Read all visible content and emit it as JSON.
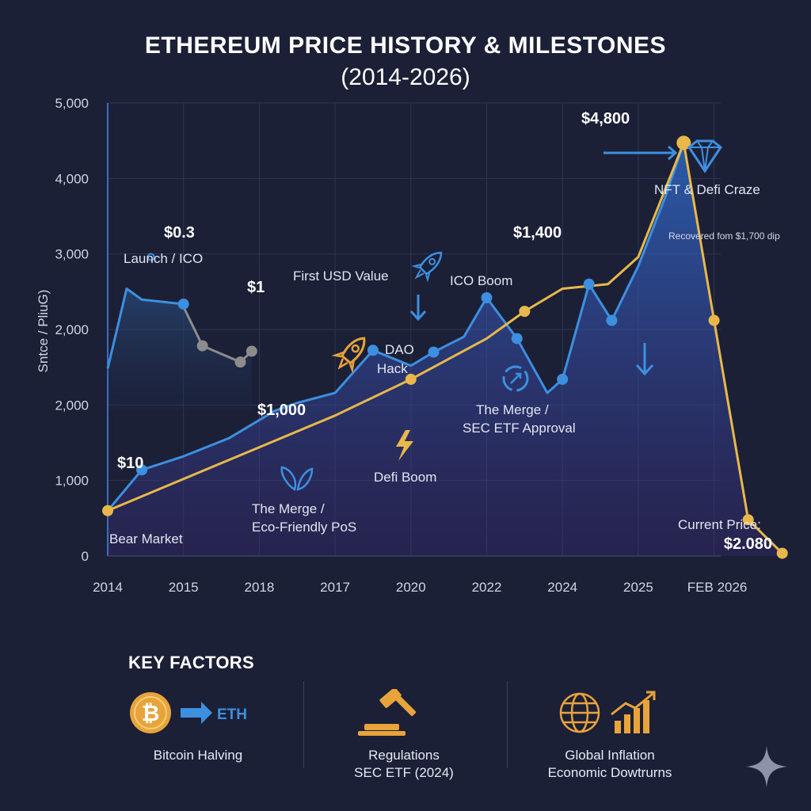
{
  "title_line1": "ETHEREUM PRICE HISTORY & MILESTONES",
  "title_line2": "(2014-2026)",
  "chart_data": {
    "type": "line",
    "title": "ETHEREUM PRICE HISTORY & MILESTONES (2014-2026)",
    "ylabel": "Sntce / PliuG)",
    "xlabel": "",
    "ylim": [
      0,
      5000
    ],
    "grid": true,
    "x_tick_labels": [
      "2014",
      "2015",
      "2018",
      "2017",
      "2020",
      "2022",
      "2024",
      "2025",
      "FEB 2026"
    ],
    "y_tick_labels": [
      "0",
      "1,000",
      "2,000",
      "2,000",
      "3,000",
      "4,000",
      "5,000"
    ],
    "series": [
      {
        "name": "blue",
        "color": "#3d8fe0",
        "x": [
          0,
          0.45,
          1.0,
          1.6,
          2.2,
          2.5,
          3.0,
          3.5,
          4.0,
          4.3,
          4.7,
          5.0,
          5.4,
          5.8,
          6.0,
          6.35,
          6.65,
          7.0,
          7.35,
          7.6
        ],
        "y": [
          500,
          950,
          1100,
          1300,
          1600,
          1690,
          1800,
          2270,
          2100,
          2250,
          2420,
          2850,
          2400,
          1800,
          1950,
          3000,
          2600,
          3200,
          3950,
          4560
        ]
      },
      {
        "name": "blue-early",
        "color": "#3d8fe0",
        "x": [
          0,
          0.25,
          0.45,
          1.0
        ],
        "y": [
          2070,
          2950,
          2830,
          2780
        ]
      },
      {
        "name": "gold",
        "color": "#e8b84a",
        "x": [
          0,
          1.0,
          2.0,
          3.0,
          4.0,
          5.0,
          5.5,
          6.0,
          6.6,
          7.0,
          7.6,
          8.0,
          8.45,
          8.9
        ],
        "y": [
          500,
          850,
          1200,
          1550,
          1950,
          2400,
          2700,
          2950,
          3000,
          3300,
          4560,
          2600,
          400,
          30
        ]
      },
      {
        "name": "grey-early",
        "color": "#8c8c8c",
        "x": [
          1.0,
          1.25,
          1.75,
          1.9
        ],
        "y": [
          2750,
          2320,
          2140,
          2260
        ]
      }
    ],
    "price_labels": [
      "$10",
      "$0.3",
      "$1",
      "$1,000",
      "$1,400",
      "$4,800",
      "$2.080"
    ],
    "annotations": [
      "Launch / ICO",
      "First USD Value",
      "ICO Boom",
      "DAO",
      "Hack",
      "The Merge /",
      "SEC ETF Approval",
      "Defi Boom",
      "The Merge /",
      "Eco-Friendly PoS",
      "Bear Market",
      "NFT & Defi Craze",
      "Recovered fom $1,700 dip",
      "Current Price:"
    ]
  },
  "factors": {
    "title": "KEY FACTORS",
    "items": [
      {
        "icon": "bitcoin-to-eth-icon",
        "tag": "ETH",
        "lines": [
          "Bitcoin Halving"
        ]
      },
      {
        "icon": "gavel-icon",
        "lines": [
          "Regulations",
          "SEC ETF (2024)"
        ]
      },
      {
        "icon": "globe-growth-icon",
        "lines": [
          "Global Inflation",
          "Economic Dowtrurns"
        ]
      }
    ]
  },
  "colors": {
    "background": "#1b2036",
    "blue": "#3d8fe0",
    "gold": "#e8b84a",
    "grid": "#2f3652"
  }
}
